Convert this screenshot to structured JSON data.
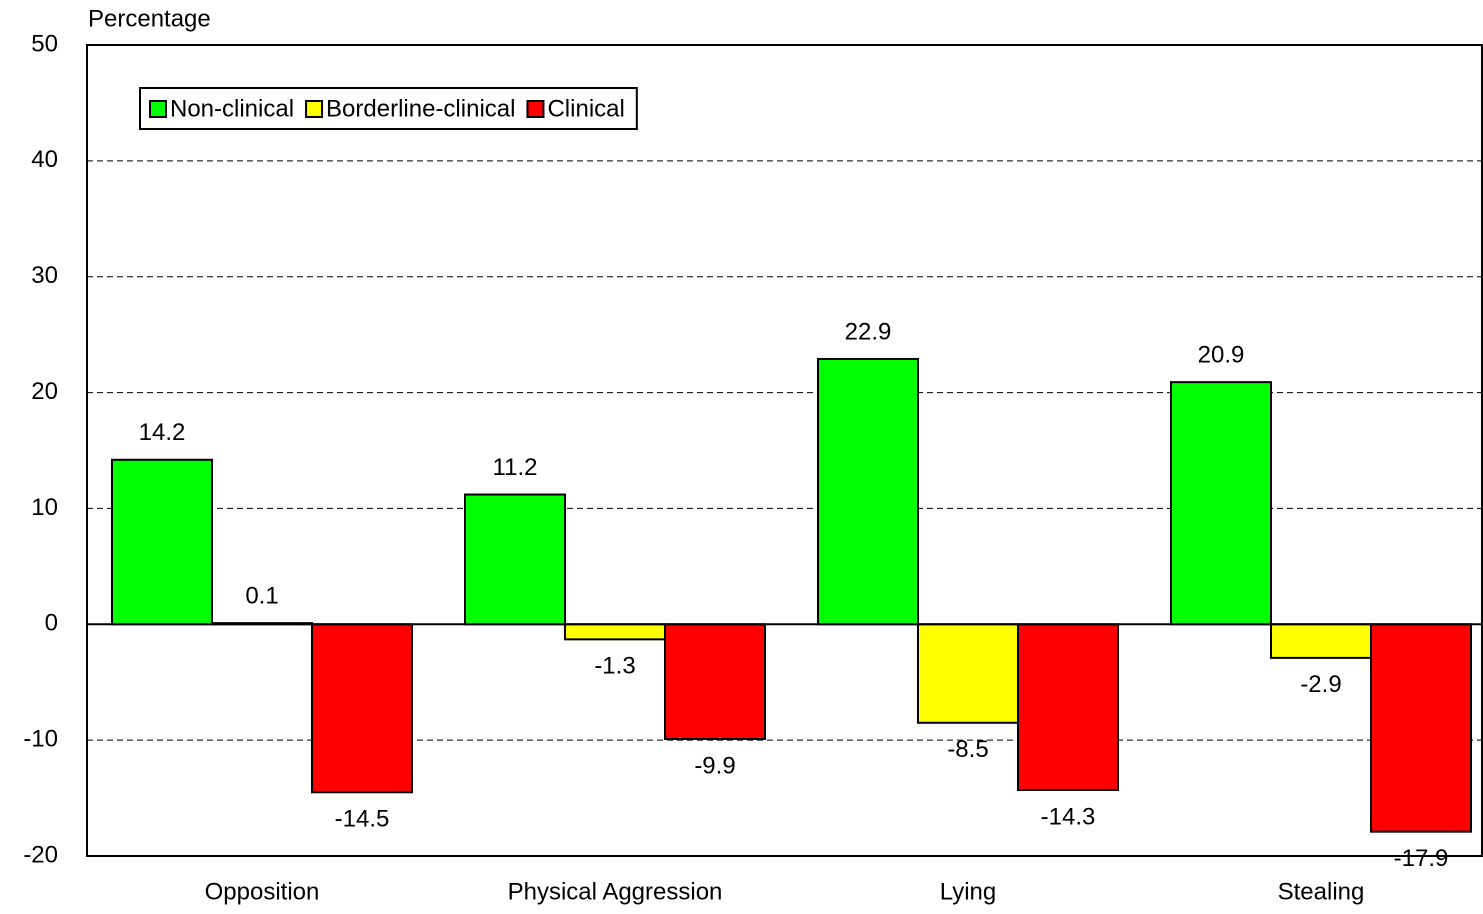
{
  "chart_data": {
    "type": "bar",
    "y_label": "Percentage",
    "categories": [
      "Opposition",
      "Physical Aggression",
      "Lying",
      "Stealing"
    ],
    "series": [
      {
        "name": "Non-clinical",
        "color": "#00ff00",
        "values": [
          14.2,
          11.2,
          22.9,
          20.9
        ]
      },
      {
        "name": "Borderline-clinical",
        "color": "#ffff00",
        "values": [
          0.1,
          -1.3,
          -8.5,
          -2.9
        ]
      },
      {
        "name": "Clinical",
        "color": "#ff0000",
        "values": [
          -14.5,
          -9.9,
          -14.3,
          -17.9
        ]
      }
    ],
    "ylim": [
      -20,
      50
    ],
    "yticks": [
      -20,
      -10,
      0,
      10,
      20,
      30,
      40,
      50
    ],
    "grid": true,
    "legend": "top-left"
  }
}
